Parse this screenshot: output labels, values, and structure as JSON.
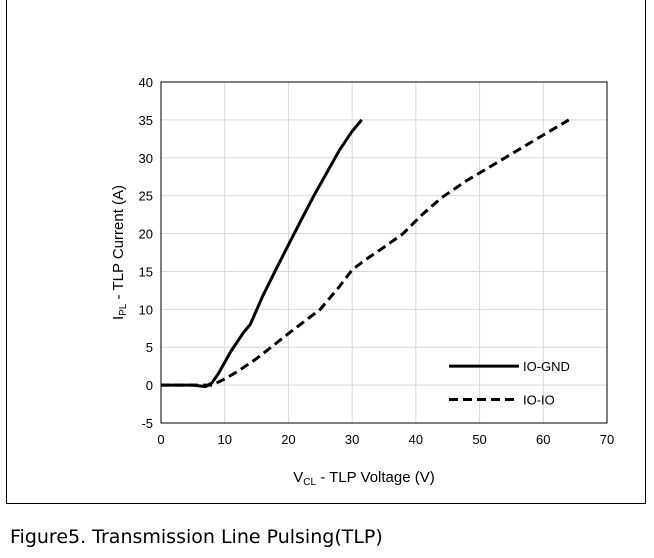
{
  "caption": "Figure5. Transmission Line Pulsing(TLP)",
  "chart_data": {
    "type": "line",
    "xlabel": {
      "main": "V",
      "sub": "CL",
      "rest": " - TLP Voltage (V)"
    },
    "ylabel": {
      "main": "I",
      "sub": "PL",
      "rest": " - TLP Current (A)"
    },
    "xlim": [
      0,
      70
    ],
    "ylim": [
      -5,
      40
    ],
    "xticks": [
      0,
      10,
      20,
      30,
      40,
      50,
      60,
      70
    ],
    "yticks": [
      -5,
      0,
      5,
      10,
      15,
      20,
      25,
      30,
      35,
      40
    ],
    "grid": true,
    "legend_position": "lower-right",
    "series": [
      {
        "name": "IO-GND",
        "style": "solid",
        "color": "#000000",
        "points": [
          [
            0,
            0
          ],
          [
            5,
            0
          ],
          [
            7,
            -0.2
          ],
          [
            8,
            0.3
          ],
          [
            9,
            1.5
          ],
          [
            10,
            3
          ],
          [
            11,
            4.5
          ],
          [
            13,
            7
          ],
          [
            14,
            8
          ],
          [
            16,
            11.8
          ],
          [
            18,
            15.2
          ],
          [
            20,
            18.5
          ],
          [
            22,
            21.8
          ],
          [
            24,
            25
          ],
          [
            26,
            28
          ],
          [
            28,
            31
          ],
          [
            30,
            33.5
          ],
          [
            31.5,
            35
          ]
        ]
      },
      {
        "name": "IO-IO",
        "style": "dashed",
        "color": "#000000",
        "points": [
          [
            0,
            0
          ],
          [
            6,
            0
          ],
          [
            8,
            0
          ],
          [
            10,
            0.8
          ],
          [
            12,
            1.8
          ],
          [
            15,
            3.5
          ],
          [
            20,
            6.8
          ],
          [
            25,
            10
          ],
          [
            28,
            13
          ],
          [
            30,
            15.2
          ],
          [
            32,
            16.5
          ],
          [
            35,
            18.2
          ],
          [
            38,
            20
          ],
          [
            41,
            22.5
          ],
          [
            44,
            24.7
          ],
          [
            48,
            27
          ],
          [
            52,
            29
          ],
          [
            56,
            31
          ],
          [
            60,
            33
          ],
          [
            64,
            35
          ]
        ]
      }
    ]
  }
}
